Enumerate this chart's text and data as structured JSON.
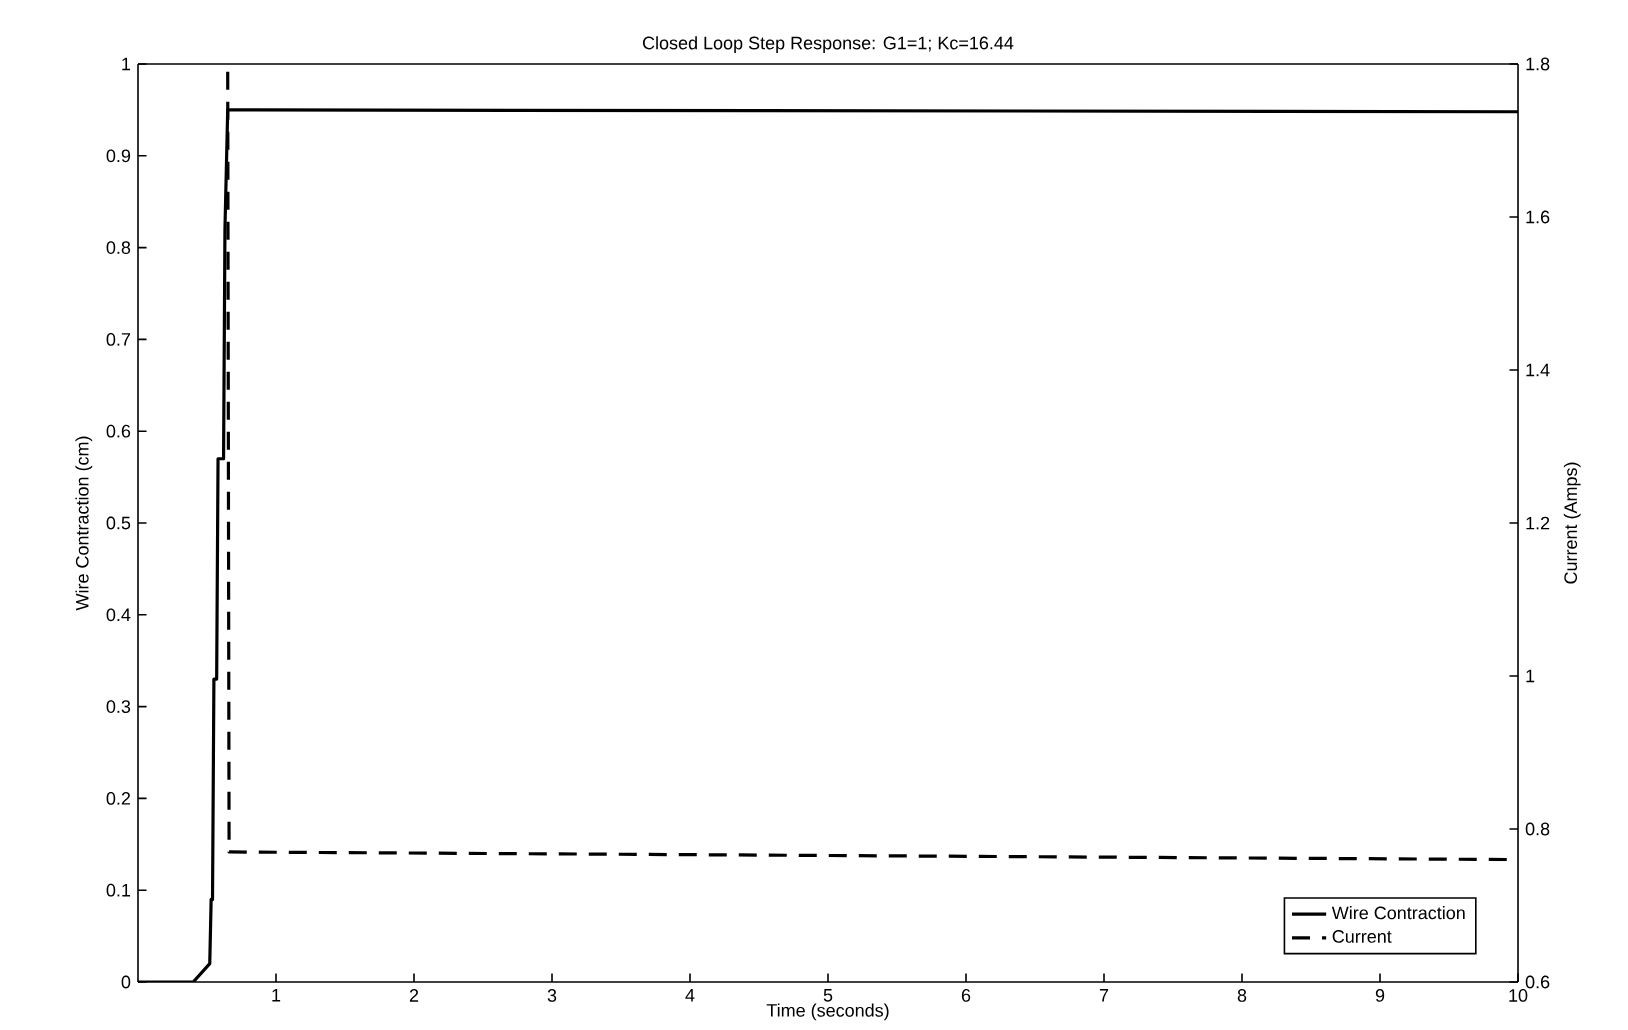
{
  "chart_data": {
    "type": "line",
    "title": "Closed Loop Step Response: G1=1; Kc=16.44",
    "xlabel": "Time (seconds)",
    "ylabel": "Wire Contraction (cm)",
    "y2label": "Current (Amps)",
    "series": [
      {
        "name": "Wire Contraction",
        "color": "#000000",
        "line_style": "solid",
        "x": [
          0,
          0.4,
          0.52,
          0.53,
          0.54,
          0.55,
          0.57,
          0.58,
          0.62,
          0.63,
          0.65,
          10
        ],
        "values": [
          0,
          0,
          0.02,
          0.09,
          0.09,
          0.33,
          0.33,
          0.57,
          0.57,
          0.82,
          0.95,
          0.948
        ]
      },
      {
        "name": "Current",
        "color": "#000000",
        "line_style": "dashed",
        "axis": "y2",
        "x": [
          0.65,
          0.66,
          10
        ],
        "values": [
          1.79,
          0.77,
          0.76
        ]
      }
    ],
    "xlim": [
      0,
      10
    ],
    "xticks": [
      1,
      2,
      3,
      4,
      5,
      6,
      7,
      8,
      9,
      10
    ],
    "ylim": [
      0,
      1
    ],
    "yticks": [
      0,
      0.1,
      0.2,
      0.3,
      0.4,
      0.5,
      0.6,
      0.7,
      0.8,
      0.9,
      1
    ],
    "y2lim": [
      0.6,
      1.8
    ],
    "y2ticks": [
      0.6,
      0.8,
      1,
      1.2,
      1.4,
      1.6,
      1.8
    ],
    "legend": "bottom right",
    "marker": "none"
  }
}
